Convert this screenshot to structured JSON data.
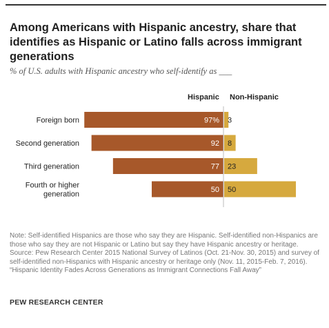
{
  "title": "Among Americans with Hispanic ancestry, share that identifies as Hispanic or Latino falls across immigrant generations",
  "subtitle": "% of U.S. adults with Hispanic ancestry who self-identify as ___",
  "chart_data": {
    "type": "bar",
    "orientation": "horizontal-diverging",
    "categories": [
      "Foreign born",
      "Second generation",
      "Third generation",
      "Fourth or higher generation"
    ],
    "category_lines": [
      [
        "Foreign born"
      ],
      [
        "Second generation"
      ],
      [
        "Third generation"
      ],
      [
        "Fourth or higher",
        "generation"
      ]
    ],
    "series": [
      {
        "name": "Hispanic",
        "values": [
          97,
          92,
          77,
          50
        ],
        "labels": [
          "97%",
          "92",
          "77",
          "50"
        ],
        "color": "#a7582a"
      },
      {
        "name": "Non-Hispanic",
        "values": [
          3,
          8,
          23,
          50
        ],
        "labels": [
          "3",
          "8",
          "23",
          "50"
        ],
        "color": "#d6a93e"
      }
    ],
    "xlim": [
      0,
      100
    ]
  },
  "notes": [
    "Note: Self-identified Hispanics are those who say they are Hispanic. Self-identified non-Hispanics are those who say they are not Hispanic or Latino but say they have Hispanic ancestry or heritage.",
    "Source: Pew Research Center 2015 National Survey of Latinos (Oct. 21-Nov. 30, 2015) and survey of self-identified non-Hispanics with Hispanic ancestry or heritage only (Nov. 11, 2015-Feb. 7, 2016).",
    "“Hispanic Identity Fades Across Generations as Immigrant Connections Fall Away”"
  ],
  "source_org": "PEW RESEARCH CENTER"
}
